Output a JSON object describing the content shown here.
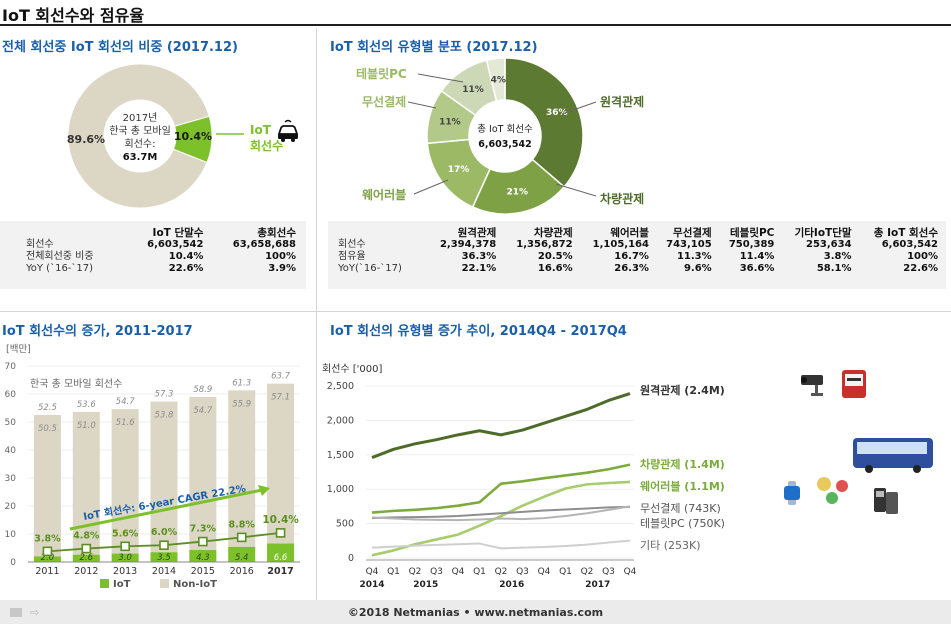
{
  "page": {
    "title": "IoT 회선수와 점유율",
    "footer": "©2018 Netmanias • www.netmanias.com"
  },
  "colors": {
    "iot_green": "#7cc12a",
    "non_iot": "#dcd6c4",
    "title_blue": "#1a5fa8",
    "dark_green": "#4e6b2a"
  },
  "icons": [
    "car-icon",
    "cctv-camera-icon",
    "meter-icon",
    "bus-icon",
    "smartwatch-icon",
    "wearable-devices-icon",
    "card-terminal-icon"
  ],
  "panel1": {
    "title": "전체 회선중 IoT 회선의 비중 (2017.12)",
    "center_lines": [
      "2017년",
      "한국 총 모바일",
      "회선수:",
      "63.7M"
    ],
    "non_iot_label": "89.6%",
    "iot_label": "10.4%",
    "iot_callout": [
      "IoT",
      "회선수"
    ],
    "table": {
      "headers": [
        "",
        "IoT 단말수",
        "총회선수"
      ],
      "rows": [
        [
          "회선수",
          "6,603,542",
          "63,658,688"
        ],
        [
          "전체회선중 비중",
          "10.4%",
          "100%"
        ],
        [
          "YoY (`16-`17)",
          "22.6%",
          "3.9%"
        ]
      ]
    }
  },
  "panel2": {
    "title": "IoT 회선의 유형별 분포 (2017.12)",
    "center_lines": [
      "총 IoT 회선수",
      "6,603,542"
    ],
    "slice_labels": [
      "원격관제",
      "차량관제",
      "웨어러블",
      "무선결제",
      "테블릿PC"
    ],
    "table": {
      "headers": [
        "",
        "원격관제",
        "차량관제",
        "웨어러블",
        "무선결제",
        "테블릿PC",
        "기타IoT단말",
        "총 IoT 회선수"
      ],
      "rows": [
        [
          "회선수",
          "2,394,378",
          "1,356,872",
          "1,105,164",
          "743,105",
          "750,389",
          "253,634",
          "6,603,542"
        ],
        [
          "점유율",
          "36.3%",
          "20.5%",
          "16.7%",
          "11.3%",
          "11.4%",
          "3.8%",
          "100%"
        ],
        [
          "YoY(`16-`17)",
          "22.1%",
          "16.6%",
          "26.3%",
          "9.6%",
          "36.6%",
          "58.1%",
          "22.6%"
        ]
      ]
    }
  },
  "panel3": {
    "title": "IoT 회선수의 증가, 2011-2017",
    "unit": "[백만]",
    "series_note": "한국 총 모바일 회선수",
    "cagr_note": "IoT 회선수: 6-year CAGR 22.2%"
  },
  "panel4": {
    "title": "IoT 회선의 유형별 증가 추이, 2014Q4 - 2017Q4",
    "unit": "회선수 ['000]"
  },
  "chart_data": [
    {
      "type": "pie",
      "title": "전체 회선중 IoT 회선의 비중 (2017.12)",
      "labels": [
        "IoT",
        "Non-IoT"
      ],
      "values": [
        10.4,
        89.6
      ]
    },
    {
      "type": "pie",
      "title": "IoT 회선의 유형별 분포 (2017.12)",
      "labels": [
        "원격관제",
        "차량관제",
        "웨어러블",
        "무선결제",
        "테블릿PC",
        "기타"
      ],
      "values": [
        36.3,
        20.5,
        16.7,
        11.3,
        11.4,
        3.8
      ],
      "value_labels": [
        "36%",
        "21%",
        "17%",
        "11%",
        "11%",
        "4%"
      ],
      "colors": [
        "#5c7a32",
        "#7fa146",
        "#9cba66",
        "#b3c98a",
        "#cdd8b6",
        "#e3e9d6"
      ]
    },
    {
      "type": "bar",
      "title": "IoT 회선수의 증가, 2011-2017",
      "categories": [
        "2011",
        "2012",
        "2013",
        "2014",
        "2015",
        "2016",
        "2017"
      ],
      "series": [
        {
          "name": "IoT",
          "values": [
            2.0,
            2.6,
            3.0,
            3.5,
            4.3,
            5.4,
            6.6
          ]
        },
        {
          "name": "Non-IoT",
          "values": [
            50.5,
            51.0,
            51.6,
            53.8,
            54.7,
            55.9,
            57.1
          ]
        }
      ],
      "totals": [
        52.5,
        53.6,
        54.7,
        57.3,
        58.9,
        61.3,
        63.7
      ],
      "iot_share": {
        "name": "IoT 비중",
        "values": [
          "3.8%",
          "4.8%",
          "5.6%",
          "6.0%",
          "7.3%",
          "8.8%",
          "10.4%"
        ],
        "plot_values": [
          3.8,
          4.8,
          5.6,
          6.0,
          7.3,
          8.8,
          10.4
        ]
      },
      "ylabel": "[백만]",
      "ylim": [
        0,
        70
      ],
      "yticks": [
        0,
        10,
        20,
        30,
        40,
        50,
        60,
        70
      ],
      "legend": [
        "IoT",
        "Non-IoT"
      ]
    },
    {
      "type": "line",
      "title": "IoT 회선의 유형별 증가 추이, 2014Q4 - 2017Q4",
      "x": [
        "Q4",
        "Q1",
        "Q2",
        "Q3",
        "Q4",
        "Q1",
        "Q2",
        "Q3",
        "Q4",
        "Q1",
        "Q2",
        "Q3",
        "Q4"
      ],
      "x_years": [
        "2014",
        "2015",
        "",
        "",
        "",
        "2016",
        "",
        "",
        "",
        "2017",
        "",
        "",
        ""
      ],
      "ylabel": "회선수 ['000]",
      "ylim": [
        0,
        2500
      ],
      "yticks": [
        "0",
        "500",
        "1,000",
        "1,500",
        "2,000",
        "2,500"
      ],
      "series": [
        {
          "name": "원격관제 (2.4M)",
          "color": "#4e6b2a",
          "values": [
            1460,
            1580,
            1660,
            1720,
            1790,
            1850,
            1790,
            1860,
            1960,
            2060,
            2160,
            2290,
            2390
          ]
        },
        {
          "name": "차량관제 (1.4M)",
          "color": "#7cab3c",
          "values": [
            660,
            685,
            700,
            725,
            760,
            810,
            1080,
            1115,
            1160,
            1200,
            1240,
            1290,
            1357
          ]
        },
        {
          "name": "웨어러블 (1.1M)",
          "color": "#a6cc6e",
          "values": [
            40,
            110,
            200,
            270,
            340,
            470,
            610,
            760,
            890,
            1010,
            1070,
            1090,
            1105
          ]
        },
        {
          "name": "무선결제 (743K)",
          "color": "#8e8e8e",
          "values": [
            580,
            590,
            595,
            600,
            610,
            630,
            650,
            670,
            690,
            705,
            720,
            735,
            743
          ]
        },
        {
          "name": "테블릿PC (750K)",
          "color": "#b5b5b5",
          "values": [
            590,
            575,
            560,
            555,
            550,
            560,
            575,
            565,
            580,
            610,
            650,
            700,
            750
          ]
        },
        {
          "name": "기타 (253K)",
          "color": "#cfcfcf",
          "values": [
            150,
            165,
            180,
            190,
            200,
            210,
            140,
            150,
            160,
            175,
            195,
            225,
            253
          ]
        }
      ]
    }
  ]
}
